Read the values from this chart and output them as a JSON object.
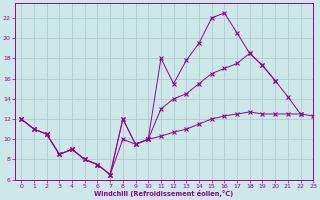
{
  "xlabel": "Windchill (Refroidissement éolien,°C)",
  "background_color": "#cce8e8",
  "grid_color": "#a8c8cc",
  "line_color": "#990099",
  "xlim": [
    -0.5,
    23
  ],
  "ylim": [
    6,
    23.5
  ],
  "xticks": [
    0,
    1,
    2,
    3,
    4,
    5,
    6,
    7,
    8,
    9,
    10,
    11,
    12,
    13,
    14,
    15,
    16,
    17,
    18,
    19,
    20,
    21,
    22,
    23
  ],
  "yticks": [
    6,
    8,
    10,
    12,
    14,
    16,
    18,
    20,
    22
  ],
  "series1_x": [
    0,
    1,
    2,
    3,
    4,
    5,
    6,
    7,
    8,
    9,
    10,
    11,
    12,
    13,
    14,
    15,
    16,
    17,
    18,
    19,
    20,
    21,
    22
  ],
  "series1_y": [
    12,
    11,
    10.5,
    8.5,
    9,
    8,
    7.5,
    6.5,
    12,
    9.5,
    10,
    18,
    15.5,
    17.8,
    19.5,
    22,
    22.5,
    20.5,
    18.5,
    17.3,
    15.8,
    14.2,
    12.5
  ],
  "series2_x": [
    0,
    1,
    2,
    3,
    4,
    5,
    6,
    7,
    8,
    9,
    10,
    11,
    12,
    13,
    14,
    15,
    16,
    17,
    18,
    19,
    20,
    21,
    22
  ],
  "series2_y": [
    12,
    11,
    10.5,
    8.5,
    9,
    8,
    7.5,
    6.5,
    12,
    9.5,
    10,
    13,
    14,
    14.5,
    15.5,
    16.5,
    17.0,
    17.5,
    18.5,
    17.3,
    15.8,
    null,
    null
  ],
  "series3_x": [
    0,
    1,
    2,
    3,
    4,
    5,
    6,
    7,
    8,
    9,
    10,
    11,
    12,
    13,
    14,
    15,
    16,
    17,
    18,
    19,
    20,
    21,
    22,
    23
  ],
  "series3_y": [
    12,
    11,
    10.5,
    8.5,
    9,
    8,
    7.5,
    6.5,
    10,
    9.5,
    10,
    10.3,
    10.7,
    11.0,
    11.5,
    12.0,
    12.3,
    12.5,
    12.7,
    12.5,
    12.5,
    12.5,
    12.5,
    12.3
  ]
}
